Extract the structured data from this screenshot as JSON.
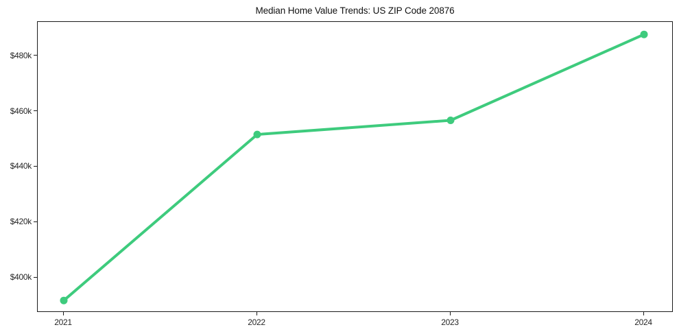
{
  "chart_data": {
    "type": "line",
    "title": "Median Home Value Trends: US ZIP Code 20876",
    "categories": [
      "2021",
      "2022",
      "2023",
      "2024"
    ],
    "series": [
      {
        "name": "Median Home Value",
        "values": [
          391800,
          451700,
          456800,
          487800
        ]
      }
    ],
    "xlabel": "",
    "ylabel": "",
    "yticks": [
      {
        "label": "$400k",
        "value": 400000
      },
      {
        "label": "$420k",
        "value": 420000
      },
      {
        "label": "$440k",
        "value": 440000
      },
      {
        "label": "$460k",
        "value": 460000
      },
      {
        "label": "$480k",
        "value": 480000
      }
    ],
    "ylim": [
      387400,
      492300
    ],
    "grid": false,
    "legend_position": "none",
    "line_color": "#3ecb7d",
    "marker": "circle",
    "background_color": "#ffffff",
    "axis_color": "#1a1a1a",
    "tick_text_color": "#262626"
  }
}
